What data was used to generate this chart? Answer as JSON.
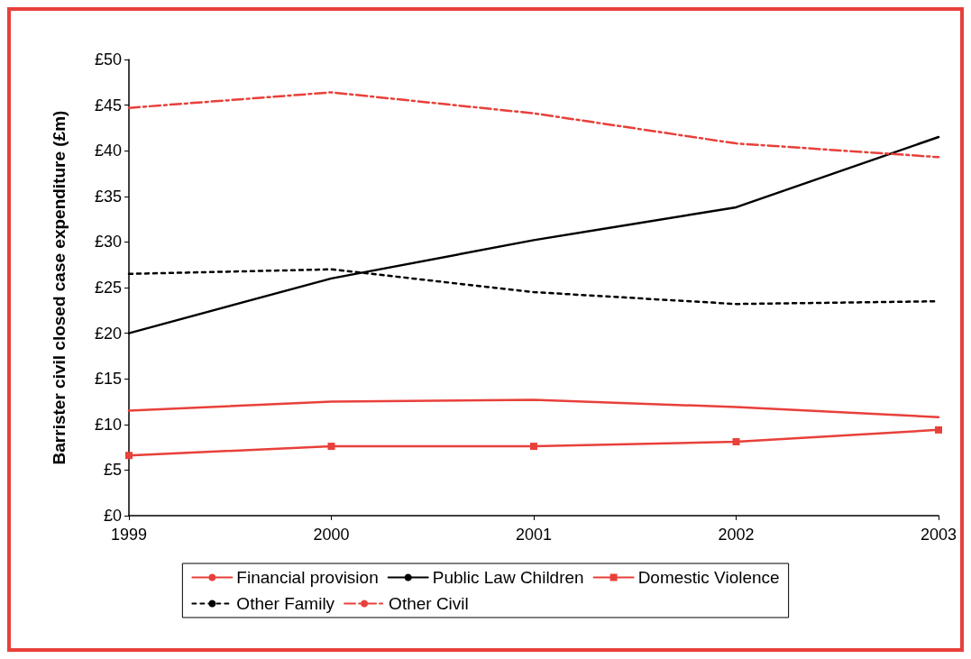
{
  "chart_data": {
    "type": "line",
    "ylabel": "Barrister civil closed case expenditure (£m)",
    "categories": [
      "1999",
      "2000",
      "2001",
      "2002",
      "2003"
    ],
    "ylim": [
      0,
      50
    ],
    "yticks": [
      {
        "value": 0,
        "label": "£0"
      },
      {
        "value": 5,
        "label": "£5"
      },
      {
        "value": 10,
        "label": "£10"
      },
      {
        "value": 15,
        "label": "£15"
      },
      {
        "value": 20,
        "label": "£20"
      },
      {
        "value": 25,
        "label": "£25"
      },
      {
        "value": 30,
        "label": "£30"
      },
      {
        "value": 35,
        "label": "£35"
      },
      {
        "value": 40,
        "label": "£40"
      },
      {
        "value": 45,
        "label": "£45"
      },
      {
        "value": 50,
        "label": "£50"
      }
    ],
    "grid": false,
    "legend": "bottom",
    "marker": "none",
    "series": [
      {
        "name": "Financial provision",
        "color": "#e8403a",
        "line_style": "solid",
        "values": [
          11.5,
          12.5,
          12.7,
          11.9,
          10.8
        ]
      },
      {
        "name": "Public Law Children",
        "color": "#000000",
        "line_style": "solid",
        "values": [
          20,
          26,
          30.2,
          33.8,
          41.5
        ]
      },
      {
        "name": "Domestic Violence",
        "color": "#e8403a",
        "line_style": "solid",
        "marker": "square",
        "values": [
          6.6,
          7.6,
          7.6,
          8.1,
          9.4
        ]
      },
      {
        "name": "Other Family",
        "color": "#000000",
        "line_style": "dotted",
        "values": [
          26.5,
          27,
          24.5,
          23.2,
          23.5
        ]
      },
      {
        "name": "Other Civil",
        "color": "#e8403a",
        "line_style": "dashed",
        "values": [
          44.7,
          46.4,
          44.1,
          40.8,
          39.3
        ]
      }
    ]
  }
}
